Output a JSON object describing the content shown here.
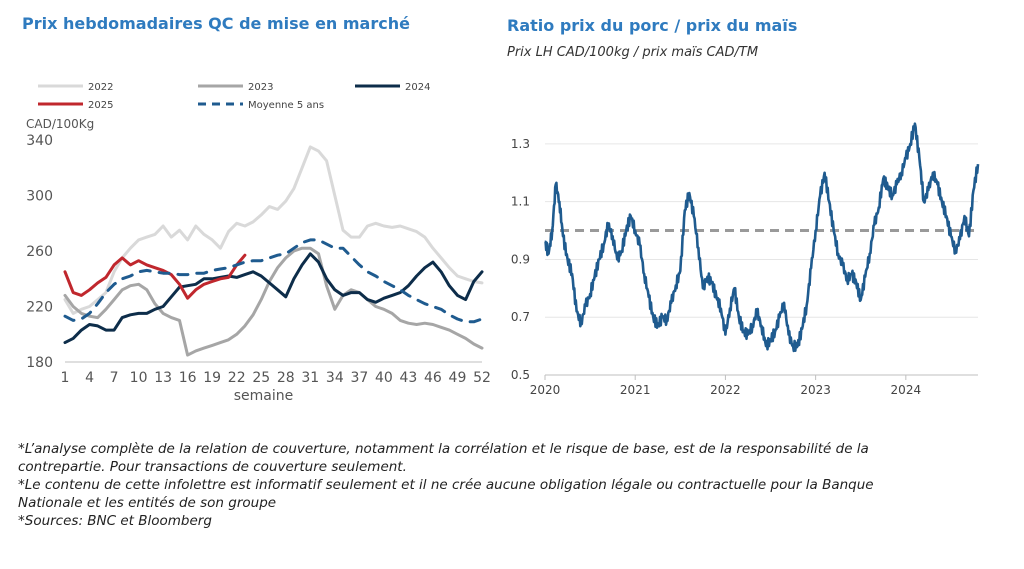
{
  "left_title": "Prix hebdomadaires QC de mise en marché",
  "right_title": "Ratio prix du porc / prix du maïs",
  "right_subtitle": "Prix LH CAD/100kg / prix maïs CAD/TM",
  "notes": [
    "*L’analyse complète de la relation de couverture, notamment la corrélation et le risque de base, est de la responsabilité de la contrepartie. Pour transactions de couverture seulement.",
    "*Le contenu de cette infolettre est informatif seulement et il ne crée aucune obligation légale ou contractuelle pour la Banque Nationale et les entités de son groupe",
    "*Sources: BNC et Bloomberg"
  ],
  "chart_data": [
    {
      "type": "line",
      "title": "Prix hebdomadaires QC de mise en marché",
      "xlabel": "semaine",
      "ylabel": "CAD/100Kg",
      "ylim": [
        180,
        340
      ],
      "xlim": [
        1,
        52
      ],
      "x_ticks": [
        "1",
        "4",
        "7",
        "10",
        "13",
        "16",
        "19",
        "22",
        "25",
        "28",
        "31",
        "34",
        "37",
        "40",
        "43",
        "46",
        "49",
        "52"
      ],
      "y_ticks": [
        "180",
        "220",
        "260",
        "300",
        "340"
      ],
      "legend_position": "top",
      "grid": false,
      "x": [
        1,
        2,
        3,
        4,
        5,
        6,
        7,
        8,
        9,
        10,
        11,
        12,
        13,
        14,
        15,
        16,
        17,
        18,
        19,
        20,
        21,
        22,
        23,
        24,
        25,
        26,
        27,
        28,
        29,
        30,
        31,
        32,
        33,
        34,
        35,
        36,
        37,
        38,
        39,
        40,
        41,
        42,
        43,
        44,
        45,
        46,
        47,
        48,
        49,
        50,
        51,
        52
      ],
      "series": [
        {
          "name": "2022",
          "color": "#d9d9d9",
          "dashed": false,
          "width": 3,
          "values": [
            225,
            215,
            218,
            220,
            225,
            230,
            245,
            255,
            262,
            268,
            270,
            272,
            278,
            270,
            275,
            268,
            278,
            272,
            268,
            262,
            274,
            280,
            278,
            281,
            286,
            292,
            290,
            296,
            305,
            320,
            335,
            332,
            325,
            300,
            275,
            270,
            270,
            278,
            280,
            278,
            277,
            278,
            276,
            274,
            270,
            262,
            255,
            248,
            242,
            240,
            238,
            237
          ]
        },
        {
          "name": "2023",
          "color": "#a6a6a6",
          "dashed": false,
          "width": 3,
          "values": [
            228,
            220,
            215,
            213,
            212,
            218,
            225,
            232,
            235,
            236,
            232,
            222,
            215,
            212,
            210,
            185,
            188,
            190,
            192,
            194,
            196,
            200,
            206,
            214,
            225,
            238,
            248,
            255,
            260,
            262,
            262,
            258,
            235,
            218,
            228,
            232,
            230,
            225,
            220,
            218,
            215,
            210,
            208,
            207,
            208,
            207,
            205,
            203,
            200,
            197,
            193,
            190
          ]
        },
        {
          "name": "2024",
          "color": "#0d2d4a",
          "dashed": false,
          "width": 3,
          "values": [
            194,
            197,
            203,
            207,
            206,
            203,
            203,
            212,
            214,
            215,
            215,
            218,
            220,
            227,
            234,
            235,
            236,
            240,
            240,
            241,
            242,
            241,
            243,
            245,
            242,
            237,
            232,
            227,
            240,
            250,
            258,
            252,
            240,
            232,
            228,
            230,
            230,
            225,
            223,
            226,
            228,
            230,
            235,
            242,
            248,
            252,
            245,
            235,
            228,
            225,
            238,
            245
          ]
        },
        {
          "name": "2025",
          "color": "#c0272d",
          "dashed": false,
          "width": 3,
          "values": [
            245,
            230,
            228,
            232,
            237,
            241,
            250,
            255,
            250,
            253,
            250,
            248,
            246,
            243,
            236,
            226,
            232,
            236,
            238,
            240,
            241,
            250,
            257,
            null,
            null,
            null,
            null,
            null,
            null,
            null,
            null,
            null,
            null,
            null,
            null,
            null,
            null,
            null,
            null,
            null,
            null,
            null,
            null,
            null,
            null,
            null,
            null,
            null,
            null,
            null,
            null,
            null
          ]
        },
        {
          "name": "Moyenne 5 ans",
          "color": "#1f5b8f",
          "dashed": true,
          "width": 3,
          "values": [
            213,
            210,
            211,
            215,
            222,
            230,
            236,
            240,
            242,
            245,
            246,
            245,
            244,
            244,
            243,
            243,
            244,
            244,
            246,
            247,
            248,
            250,
            252,
            253,
            253,
            255,
            257,
            258,
            262,
            266,
            268,
            268,
            265,
            262,
            262,
            256,
            250,
            245,
            242,
            238,
            235,
            232,
            228,
            225,
            222,
            220,
            218,
            214,
            211,
            209,
            209,
            211
          ]
        }
      ]
    },
    {
      "type": "line",
      "title": "Ratio prix du porc / prix du maïs",
      "subtitle": "Prix LH CAD/100kg / prix maïs CAD/TM",
      "ylim": [
        0.5,
        1.4
      ],
      "xlim": [
        2020.0,
        2024.8
      ],
      "x_ticks": [
        "2020",
        "2021",
        "2022",
        "2023",
        "2024"
      ],
      "y_ticks": [
        "0.5",
        "0.7",
        "0.9",
        "1.1",
        "1.3"
      ],
      "grid": true,
      "reference_line": {
        "value": 1.0,
        "color": "#9a9a9a",
        "dashed": true
      },
      "series": [
        {
          "name": "",
          "color": "#1f5b8f",
          "x": [
            2020.0,
            2020.04,
            2020.08,
            2020.12,
            2020.16,
            2020.2,
            2020.25,
            2020.3,
            2020.35,
            2020.4,
            2020.45,
            2020.5,
            2020.55,
            2020.6,
            2020.65,
            2020.7,
            2020.75,
            2020.8,
            2020.85,
            2020.9,
            2020.95,
            2021.0,
            2021.05,
            2021.1,
            2021.15,
            2021.2,
            2021.25,
            2021.3,
            2021.35,
            2021.4,
            2021.45,
            2021.5,
            2021.55,
            2021.6,
            2021.65,
            2021.7,
            2021.75,
            2021.8,
            2021.85,
            2021.9,
            2021.95,
            2022.0,
            2022.05,
            2022.1,
            2022.15,
            2022.2,
            2022.25,
            2022.3,
            2022.35,
            2022.4,
            2022.45,
            2022.5,
            2022.55,
            2022.6,
            2022.65,
            2022.7,
            2022.75,
            2022.8,
            2022.85,
            2022.9,
            2022.95,
            2023.0,
            2023.05,
            2023.1,
            2023.15,
            2023.2,
            2023.25,
            2023.3,
            2023.35,
            2023.4,
            2023.45,
            2023.5,
            2023.55,
            2023.6,
            2023.65,
            2023.7,
            2023.75,
            2023.8,
            2023.85,
            2023.9,
            2023.95,
            2024.0,
            2024.05,
            2024.1,
            2024.15,
            2024.2,
            2024.25,
            2024.3,
            2024.35,
            2024.4,
            2024.45,
            2024.5,
            2024.55,
            2024.6,
            2024.65,
            2024.7,
            2024.75,
            2024.8
          ],
          "values": [
            0.96,
            0.92,
            1.0,
            1.16,
            1.1,
            0.98,
            0.9,
            0.85,
            0.72,
            0.68,
            0.74,
            0.78,
            0.84,
            0.9,
            0.95,
            1.02,
            0.98,
            0.9,
            0.93,
            1.0,
            1.05,
            1.0,
            0.95,
            0.85,
            0.77,
            0.7,
            0.67,
            0.7,
            0.69,
            0.75,
            0.81,
            0.86,
            1.07,
            1.13,
            1.05,
            0.94,
            0.8,
            0.84,
            0.82,
            0.77,
            0.73,
            0.64,
            0.73,
            0.8,
            0.7,
            0.65,
            0.64,
            0.67,
            0.72,
            0.67,
            0.6,
            0.62,
            0.65,
            0.7,
            0.75,
            0.64,
            0.6,
            0.6,
            0.66,
            0.74,
            0.87,
            1.0,
            1.12,
            1.2,
            1.1,
            1.0,
            0.92,
            0.88,
            0.83,
            0.85,
            0.82,
            0.76,
            0.84,
            0.92,
            1.02,
            1.08,
            1.18,
            1.15,
            1.12,
            1.16,
            1.2,
            1.25,
            1.3,
            1.37,
            1.25,
            1.1,
            1.14,
            1.2,
            1.16,
            1.1,
            1.05,
            0.98,
            0.93,
            0.97,
            1.05,
            0.98,
            1.14,
            1.23
          ]
        }
      ]
    }
  ]
}
